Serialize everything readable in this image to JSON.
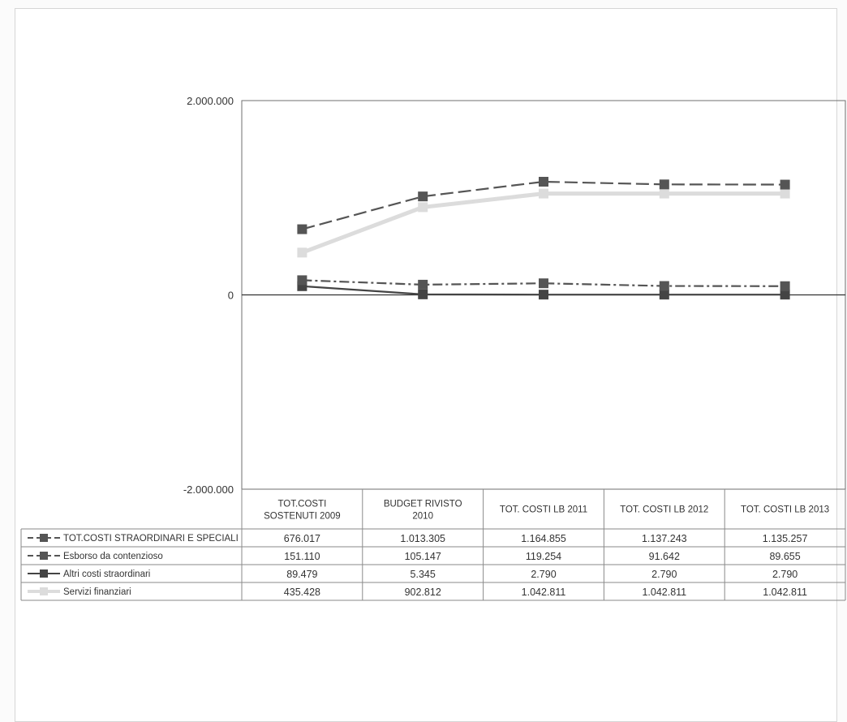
{
  "chart_data": {
    "type": "line",
    "title": "",
    "xlabel": "",
    "ylabel": "",
    "ylim": [
      -2000000,
      2000000
    ],
    "yticks": [
      {
        "value": 2000000,
        "label": "2.000.000"
      },
      {
        "value": 0,
        "label": "0"
      },
      {
        "value": -2000000,
        "label": "-2.000.000"
      }
    ],
    "categories": [
      [
        "TOT.COSTI",
        "SOSTENUTI 2009"
      ],
      [
        "BUDGET RIVISTO",
        "2010"
      ],
      [
        "TOT. COSTI LB 2011"
      ],
      [
        "TOT. COSTI LB 2012"
      ],
      [
        "TOT. COSTI LB 2013"
      ]
    ],
    "legend_position": "data-table",
    "grid": false,
    "series": [
      {
        "name": "TOT.COSTI STRAORDINARI E SPECIALI",
        "values": [
          676017,
          1013305,
          1164855,
          1137243,
          1135257
        ],
        "labels": [
          "676.017",
          "1.013.305",
          "1.164.855",
          "1.137.243",
          "1.135.257"
        ],
        "color": "#555555",
        "dash": "16,6",
        "marker": "square"
      },
      {
        "name": "Esborso da contenzioso",
        "values": [
          151110,
          105147,
          119254,
          91642,
          89655
        ],
        "labels": [
          "151.110",
          "105.147",
          "119.254",
          "91.642",
          "89.655"
        ],
        "color": "#555555",
        "dash": "12,4,3,4",
        "marker": "square"
      },
      {
        "name": "Altri costi straordinari",
        "values": [
          89479,
          5345,
          2790,
          2790,
          2790
        ],
        "labels": [
          "89.479",
          "5.345",
          "2.790",
          "2.790",
          "2.790"
        ],
        "color": "#444444",
        "dash": "",
        "marker": "square"
      },
      {
        "name": "Servizi finanziari",
        "values": [
          435428,
          902812,
          1042811,
          1042811,
          1042811
        ],
        "labels": [
          "435.428",
          "902.812",
          "1.042.811",
          "1.042.811",
          "1.042.811"
        ],
        "color": "#dcdcdc",
        "dash": "",
        "marker": "square"
      }
    ]
  }
}
